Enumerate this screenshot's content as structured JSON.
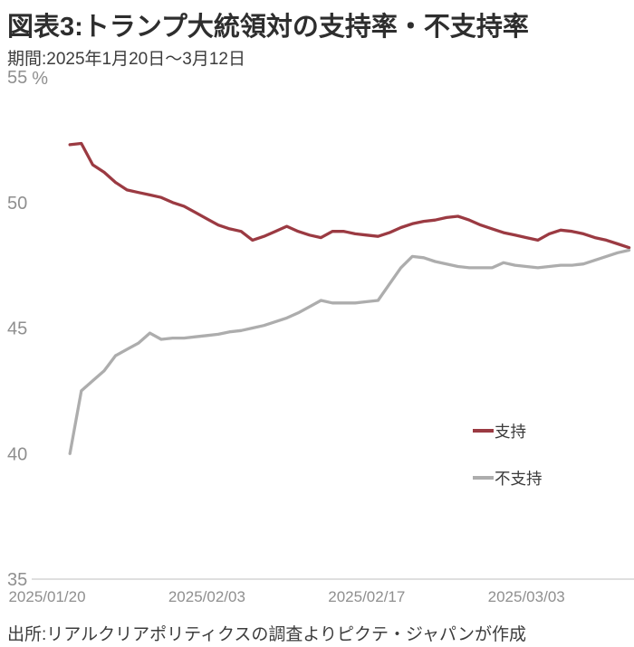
{
  "page": {
    "title": "図表3:トランプ大統領対の支持率・不支持率",
    "subtitle": "期間:2025年1月20日〜3月12日",
    "source": "出所:リアルクリアポリティクスの調査よりピクテ・ジャパンが作成"
  },
  "colors": {
    "approve": "#9b3a42",
    "disapprove": "#adadad",
    "axis_line": "#cccccc",
    "tick_text": "#8f8f8f",
    "title_text": "#2e2e2e",
    "body_text": "#3d3d3d"
  },
  "chart_data": {
    "type": "line",
    "title": "図表3:トランプ大統領対の支持率・不支持率",
    "subtitle": "期間:2025年1月20日〜3月12日",
    "unit": "%",
    "ylim": [
      35,
      55
    ],
    "grid": false,
    "legend_position": "right-middle",
    "y_ticks": [
      55,
      50,
      45,
      40,
      35
    ],
    "x_ticks": [
      {
        "label": "2025/01/20",
        "day": 0
      },
      {
        "label": "2025/02/03",
        "day": 14
      },
      {
        "label": "2025/02/17",
        "day": 28
      },
      {
        "label": "2025/03/03",
        "day": 42
      }
    ],
    "start_day": 2,
    "dates": [
      "2025/01/22",
      "2025/01/23",
      "2025/01/24",
      "2025/01/25",
      "2025/01/26",
      "2025/01/27",
      "2025/01/28",
      "2025/01/29",
      "2025/01/30",
      "2025/01/31",
      "2025/02/01",
      "2025/02/02",
      "2025/02/03",
      "2025/02/04",
      "2025/02/05",
      "2025/02/06",
      "2025/02/07",
      "2025/02/08",
      "2025/02/09",
      "2025/02/10",
      "2025/02/11",
      "2025/02/12",
      "2025/02/13",
      "2025/02/14",
      "2025/02/15",
      "2025/02/16",
      "2025/02/17",
      "2025/02/18",
      "2025/02/19",
      "2025/02/20",
      "2025/02/21",
      "2025/02/22",
      "2025/02/23",
      "2025/02/24",
      "2025/02/25",
      "2025/02/26",
      "2025/02/27",
      "2025/02/28",
      "2025/03/01",
      "2025/03/02",
      "2025/03/03",
      "2025/03/04",
      "2025/03/05",
      "2025/03/06",
      "2025/03/07",
      "2025/03/08",
      "2025/03/09",
      "2025/03/10",
      "2025/03/11",
      "2025/03/12"
    ],
    "series": [
      {
        "name": "支持",
        "color_key": "approve",
        "values": [
          52.3,
          52.35,
          51.5,
          51.2,
          50.8,
          50.5,
          50.4,
          50.3,
          50.2,
          50.0,
          49.85,
          49.6,
          49.35,
          49.1,
          48.95,
          48.85,
          48.5,
          48.65,
          48.85,
          49.05,
          48.85,
          48.7,
          48.6,
          48.85,
          48.85,
          48.75,
          48.7,
          48.65,
          48.8,
          49.0,
          49.15,
          49.25,
          49.3,
          49.4,
          49.45,
          49.3,
          49.1,
          48.95,
          48.8,
          48.7,
          48.6,
          48.5,
          48.75,
          48.9,
          48.85,
          48.75,
          48.6,
          48.5,
          48.35,
          48.2
        ]
      },
      {
        "name": "不支持",
        "color_key": "disapprove",
        "values": [
          40.0,
          42.5,
          42.9,
          43.3,
          43.9,
          44.15,
          44.4,
          44.8,
          44.55,
          44.6,
          44.6,
          44.65,
          44.7,
          44.75,
          44.85,
          44.9,
          45.0,
          45.1,
          45.25,
          45.4,
          45.6,
          45.85,
          46.1,
          46.0,
          46.0,
          46.0,
          46.05,
          46.1,
          46.75,
          47.4,
          47.85,
          47.8,
          47.65,
          47.55,
          47.45,
          47.4,
          47.4,
          47.4,
          47.6,
          47.5,
          47.45,
          47.4,
          47.45,
          47.5,
          47.5,
          47.55,
          47.7,
          47.85,
          48.0,
          48.1
        ]
      }
    ]
  }
}
